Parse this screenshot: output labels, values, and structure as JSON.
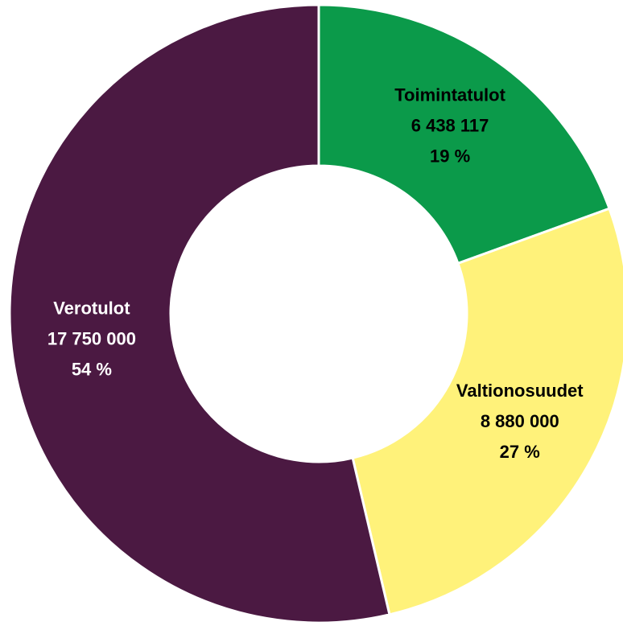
{
  "chart_data": {
    "type": "donut",
    "categories": [
      "Toimintatulot",
      "Valtionosuudet",
      "Verotulot"
    ],
    "values": [
      6438117,
      8880000,
      17750000
    ],
    "value_labels": [
      "6 438 117",
      "8 880 000",
      "17 750 000"
    ],
    "percent_labels": [
      "19 %",
      "27 %",
      "54 %"
    ],
    "colors": [
      "#0b9a4a",
      "#fff27a",
      "#4b1942"
    ],
    "label_colors": [
      "#000000",
      "#000000",
      "#ffffff"
    ]
  }
}
